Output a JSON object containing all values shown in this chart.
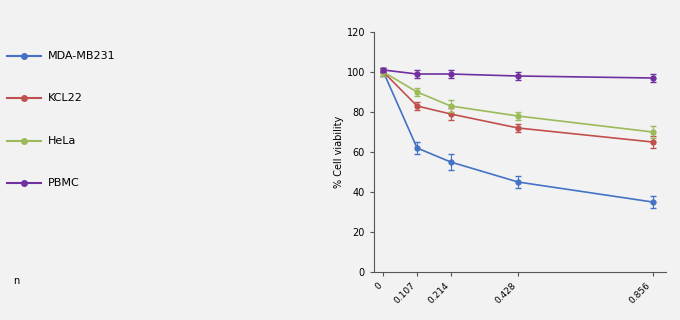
{
  "series": [
    {
      "label": "MDA-MB231",
      "color": "#4472c4",
      "marker": "o",
      "x": [
        0,
        0.107,
        0.214,
        0.428,
        0.856
      ],
      "y": [
        100,
        62,
        55,
        45,
        35
      ],
      "yerr": [
        2,
        3,
        4,
        3,
        3
      ]
    },
    {
      "label": "KCL22",
      "color": "#c0504d",
      "marker": "o",
      "x": [
        0,
        0.107,
        0.214,
        0.428,
        0.856
      ],
      "y": [
        100,
        83,
        79,
        72,
        65
      ],
      "yerr": [
        2,
        2,
        3,
        2,
        3
      ]
    },
    {
      "label": "HeLa",
      "color": "#9bbb59",
      "marker": "o",
      "x": [
        0,
        0.107,
        0.214,
        0.428,
        0.856
      ],
      "y": [
        100,
        90,
        83,
        78,
        70
      ],
      "yerr": [
        2,
        2,
        3,
        2,
        3
      ]
    },
    {
      "label": "PBMC",
      "color": "#7030a0",
      "marker": "o",
      "x": [
        0,
        0.107,
        0.214,
        0.428,
        0.856
      ],
      "y": [
        101,
        99,
        99,
        98,
        97
      ],
      "yerr": [
        1,
        2,
        2,
        2,
        2
      ]
    }
  ],
  "ylabel": "% Cell viability",
  "ylim": [
    0,
    120
  ],
  "yticks": [
    0,
    20,
    40,
    60,
    80,
    100,
    120
  ],
  "xtick_labels": [
    "0",
    "0.107",
    "0.214",
    "0.428",
    "0.856"
  ],
  "xtick_vals": [
    0,
    0.107,
    0.214,
    0.428,
    0.856
  ],
  "legend_entries": [
    "MDA-MB231",
    "KCL22",
    "HeLa",
    "PBMC"
  ],
  "legend_colors": [
    "#4472c4",
    "#c0504d",
    "#9bbb59",
    "#7030a0"
  ],
  "background_color": "#f2f2f2",
  "axis_color": "#555555",
  "total_figsize": [
    6.8,
    3.2
  ],
  "dpi": 100,
  "legend_note": "n"
}
